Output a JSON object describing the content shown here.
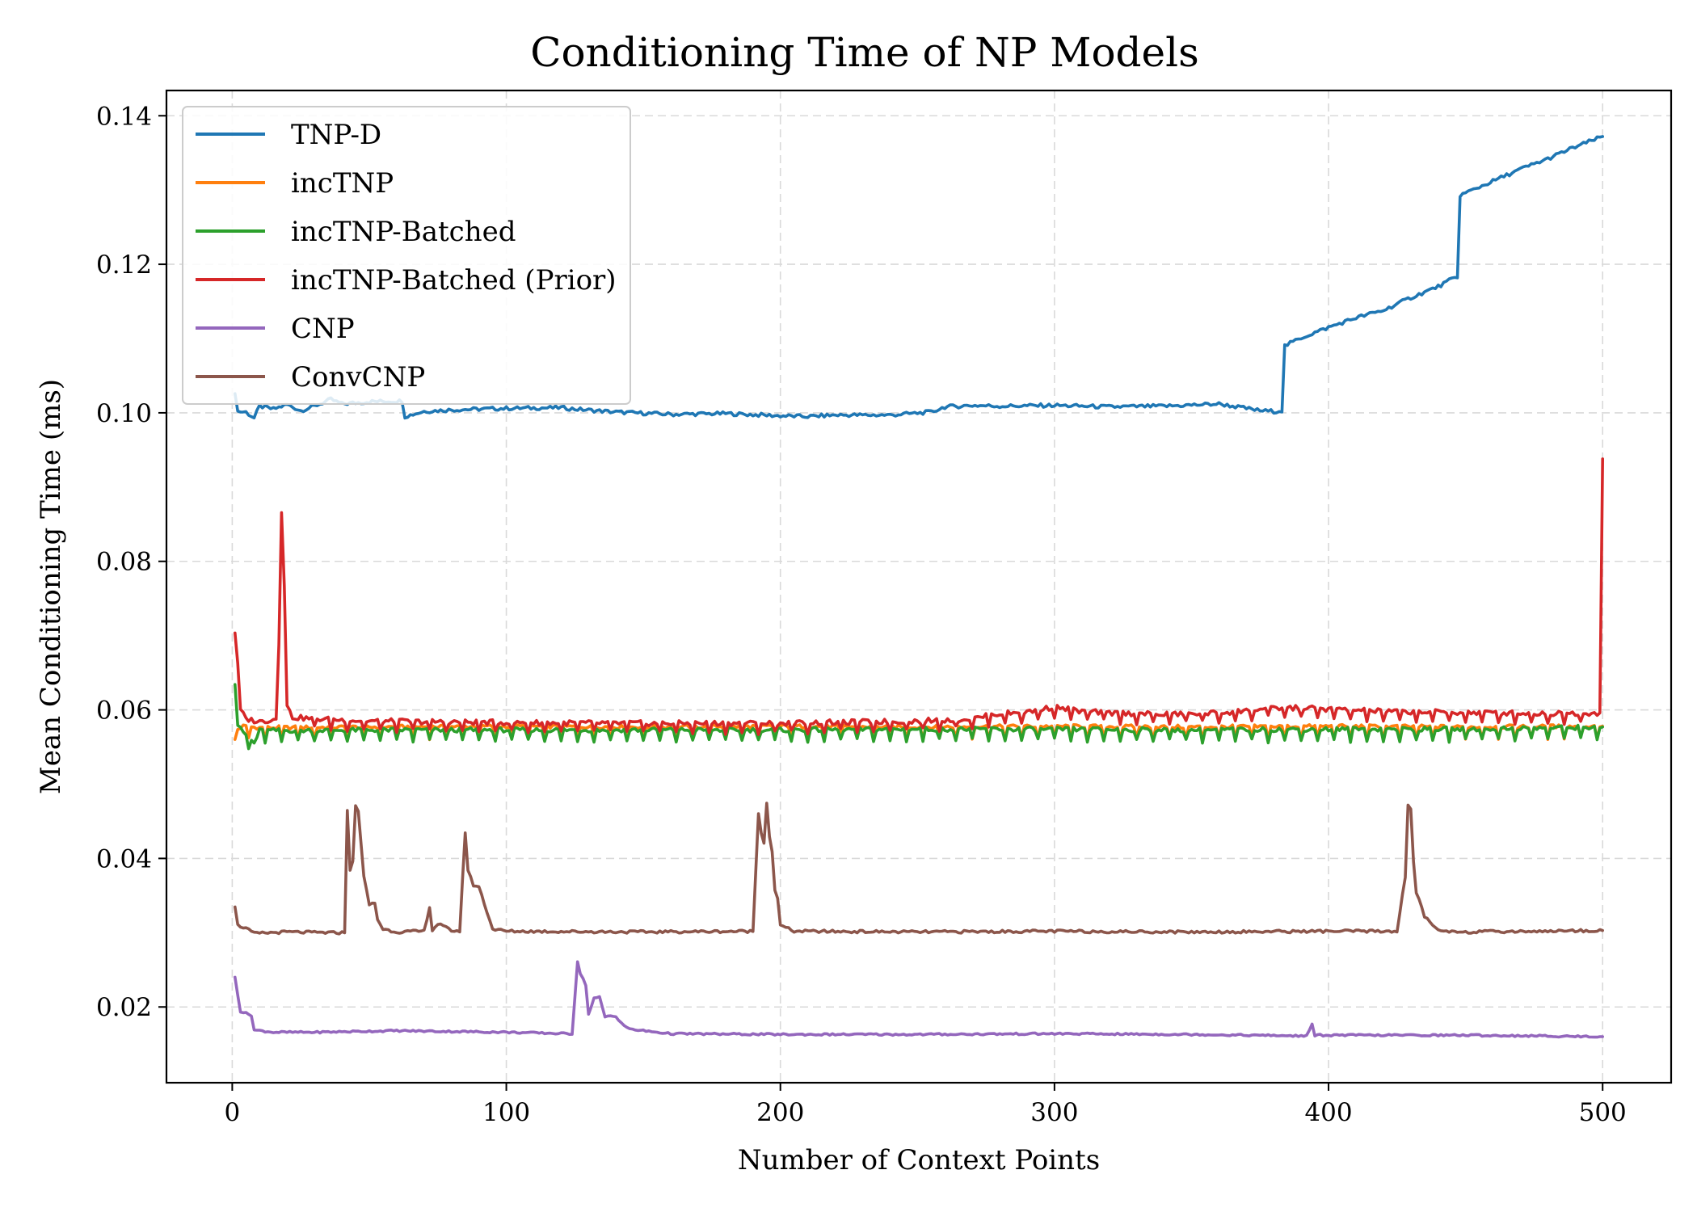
{
  "chart_data": {
    "type": "line",
    "title": "Conditioning Time of NP Models",
    "xlabel": "Number of Context Points",
    "ylabel": "Mean Conditioning Time (ms)",
    "xlim": [
      -24,
      525
    ],
    "ylim": [
      0.0098,
      0.1434
    ],
    "xticks": [
      0,
      100,
      200,
      300,
      400,
      500
    ],
    "yticks": [
      0.02,
      0.04,
      0.06,
      0.08,
      0.1,
      0.12,
      0.14
    ],
    "xtick_labels": [
      "0",
      "100",
      "200",
      "300",
      "400",
      "500"
    ],
    "ytick_labels": [
      "0.02",
      "0.04",
      "0.06",
      "0.08",
      "0.10",
      "0.12",
      "0.14"
    ],
    "grid": true,
    "legend_position": "top-left",
    "series": [
      {
        "name": "TNP-D",
        "color": "#1f77b4",
        "x": [
          1,
          2,
          5,
          8,
          10,
          15,
          20,
          25,
          30,
          36,
          40,
          50,
          62,
          63,
          70,
          80,
          100,
          120,
          125,
          140,
          160,
          180,
          200,
          210,
          220,
          240,
          255,
          260,
          270,
          280,
          300,
          320,
          340,
          360,
          375,
          380,
          383,
          384,
          390,
          400,
          410,
          420,
          430,
          440,
          445,
          447,
          448,
          450,
          460,
          470,
          480,
          490,
          500
        ],
        "y": [
          0.1028,
          0.1002,
          0.1001,
          0.0993,
          0.1009,
          0.1005,
          0.1011,
          0.1003,
          0.1009,
          0.1018,
          0.1012,
          0.1015,
          0.1016,
          0.0995,
          0.1002,
          0.1004,
          0.1006,
          0.1007,
          0.1005,
          0.1001,
          0.0998,
          0.0999,
          0.0996,
          0.0995,
          0.0997,
          0.0997,
          0.1001,
          0.1008,
          0.101,
          0.1009,
          0.101,
          0.1008,
          0.1009,
          0.1012,
          0.1003,
          0.1002,
          0.1003,
          0.109,
          0.1101,
          0.1115,
          0.1128,
          0.1138,
          0.1155,
          0.117,
          0.118,
          0.1182,
          0.1293,
          0.1296,
          0.1312,
          0.1328,
          0.1342,
          0.1358,
          0.1372
        ]
      },
      {
        "name": "incTNP",
        "color": "#ff7f0e",
        "x": [
          1,
          2,
          4,
          10,
          50,
          100,
          150,
          200,
          250,
          300,
          350,
          400,
          450,
          500
        ],
        "y": [
          0.056,
          0.0574,
          0.0578,
          0.0576,
          0.0577,
          0.0578,
          0.0577,
          0.0578,
          0.0577,
          0.0578,
          0.0577,
          0.0578,
          0.0577,
          0.0578
        ]
      },
      {
        "name": "incTNP-Batched",
        "color": "#2ca02c",
        "x": [
          1,
          2,
          3,
          5,
          8,
          10,
          50,
          100,
          150,
          200,
          250,
          300,
          350,
          400,
          450,
          500
        ],
        "y": [
          0.0635,
          0.058,
          0.0574,
          0.0566,
          0.0555,
          0.0572,
          0.0573,
          0.0573,
          0.0573,
          0.0573,
          0.0574,
          0.0574,
          0.0573,
          0.0574,
          0.0574,
          0.0577
        ]
      },
      {
        "name": "incTNP-Batched (Prior)",
        "color": "#d62728",
        "x": [
          1,
          2,
          3,
          5,
          10,
          16,
          17,
          18,
          19,
          20,
          22,
          30,
          50,
          100,
          150,
          200,
          250,
          270,
          280,
          290,
          300,
          310,
          320,
          340,
          360,
          380,
          390,
          400,
          420,
          440,
          460,
          480,
          498,
          499,
          500
        ],
        "y": [
          0.0705,
          0.066,
          0.06,
          0.0588,
          0.0584,
          0.0588,
          0.069,
          0.0869,
          0.077,
          0.0605,
          0.059,
          0.0588,
          0.0585,
          0.0583,
          0.0582,
          0.0582,
          0.0585,
          0.0588,
          0.0595,
          0.0597,
          0.0604,
          0.0598,
          0.0596,
          0.0594,
          0.0596,
          0.0602,
          0.0603,
          0.0601,
          0.0598,
          0.0597,
          0.0596,
          0.0595,
          0.0596,
          0.0598,
          0.0938
        ]
      },
      {
        "name": "CNP",
        "color": "#9467bd",
        "x": [
          1,
          3,
          7,
          8,
          15,
          30,
          60,
          100,
          123,
          124,
          126,
          127,
          129,
          130,
          132,
          134,
          136,
          137,
          140,
          143,
          145,
          160,
          200,
          250,
          300,
          350,
          392,
          393,
          394,
          395,
          400,
          450,
          500
        ],
        "y": [
          0.024,
          0.0194,
          0.0189,
          0.0169,
          0.0166,
          0.0166,
          0.0168,
          0.0166,
          0.0164,
          0.0164,
          0.0262,
          0.0245,
          0.023,
          0.019,
          0.0212,
          0.0213,
          0.0186,
          0.0188,
          0.0187,
          0.0175,
          0.017,
          0.0164,
          0.0163,
          0.0163,
          0.0164,
          0.0163,
          0.0161,
          0.0168,
          0.0176,
          0.0162,
          0.0162,
          0.0162,
          0.016
        ]
      },
      {
        "name": "ConvCNP",
        "color": "#8c564b",
        "x": [
          1,
          2,
          5,
          8,
          20,
          35,
          41,
          42,
          43,
          44,
          45,
          46,
          47,
          48,
          50,
          52,
          53,
          55,
          60,
          70,
          72,
          73,
          75,
          80,
          83,
          85,
          86,
          88,
          90,
          95,
          100,
          150,
          190,
          192,
          193,
          194,
          195,
          196,
          197,
          198,
          199,
          200,
          205,
          250,
          300,
          350,
          400,
          425,
          428,
          429,
          430,
          431,
          432,
          435,
          440,
          450,
          500
        ],
        "y": [
          0.0336,
          0.031,
          0.0306,
          0.0299,
          0.0301,
          0.03,
          0.03,
          0.0466,
          0.0385,
          0.0395,
          0.047,
          0.0465,
          0.042,
          0.0375,
          0.0338,
          0.034,
          0.0318,
          0.0305,
          0.0301,
          0.0302,
          0.0335,
          0.0303,
          0.0312,
          0.0303,
          0.0302,
          0.0436,
          0.0384,
          0.0364,
          0.0362,
          0.0305,
          0.0302,
          0.0301,
          0.0302,
          0.0461,
          0.0436,
          0.0422,
          0.0474,
          0.043,
          0.041,
          0.0358,
          0.0345,
          0.031,
          0.0302,
          0.0301,
          0.0302,
          0.0301,
          0.0302,
          0.0302,
          0.0375,
          0.0472,
          0.0465,
          0.0395,
          0.0355,
          0.0322,
          0.0303,
          0.0301,
          0.0303
        ]
      }
    ]
  }
}
